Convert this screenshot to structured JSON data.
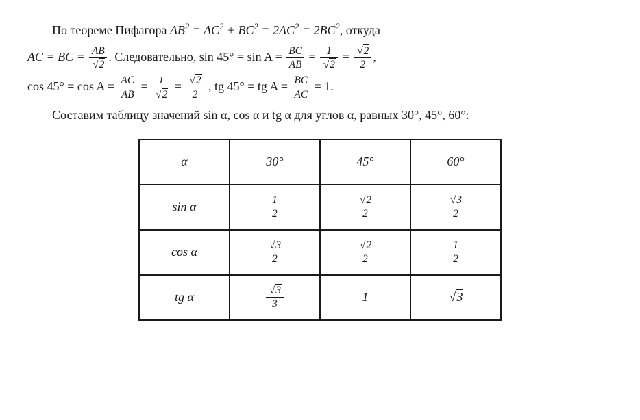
{
  "text": {
    "p1_part1": "По теореме Пифагора ",
    "p1_eq": "AB² = AC² + BC² = 2AC² = 2BC²",
    "p1_part2": ", откуда",
    "p2_lead": "AC = BC = ",
    "p2_frac1_num": "AB",
    "p2_frac1_den_rad": "2",
    "p2_part2": ".    Следовательно,    sin 45° = sin A = ",
    "p2_frac2_num": "BC",
    "p2_frac2_den": "AB",
    "p2_eq": " = ",
    "p2_frac3_num": "1",
    "p2_frac3_den_rad": "2",
    "p2_frac4_num_rad": "2",
    "p2_frac4_den": "2",
    "p3_lead": "cos 45° = cos A = ",
    "p3_frac1_num": "AC",
    "p3_frac1_den": "AB",
    "p3_frac2_num": "1",
    "p3_frac2_den_rad": "2",
    "p3_frac3_num_rad": "2",
    "p3_frac3_den": "2",
    "p3_part2": " ,  tg 45° = tg A = ",
    "p3_frac4_num": "BC",
    "p3_frac4_den": "AC",
    "p3_part3": " = 1.",
    "p4": "Составим таблицу значений sin α, cos α и tg α для углов α, равных 30°, 45°, 60°:"
  },
  "table": {
    "header": [
      "α",
      "30°",
      "45°",
      "60°"
    ],
    "rows": [
      {
        "label": "sin α",
        "cells": [
          {
            "type": "frac",
            "num": "1",
            "den": "2"
          },
          {
            "type": "fracsqrt",
            "num_rad": "2",
            "den": "2"
          },
          {
            "type": "fracsqrt",
            "num_rad": "3",
            "den": "2"
          }
        ]
      },
      {
        "label": "cos α",
        "cells": [
          {
            "type": "fracsqrt",
            "num_rad": "3",
            "den": "2"
          },
          {
            "type": "fracsqrt",
            "num_rad": "2",
            "den": "2"
          },
          {
            "type": "frac",
            "num": "1",
            "den": "2"
          }
        ]
      },
      {
        "label": "tg α",
        "cells": [
          {
            "type": "fracsqrt",
            "num_rad": "3",
            "den": "3"
          },
          {
            "type": "plain",
            "val": "1"
          },
          {
            "type": "sqrt",
            "rad": "3"
          }
        ]
      }
    ]
  },
  "style": {
    "text_color": "#1a1a1a",
    "background_color": "#ffffff",
    "border_color": "#1a1a1a",
    "font_family": "Times New Roman",
    "base_fontsize": 18,
    "table_cell_width": 130,
    "table_border_width": 2
  }
}
